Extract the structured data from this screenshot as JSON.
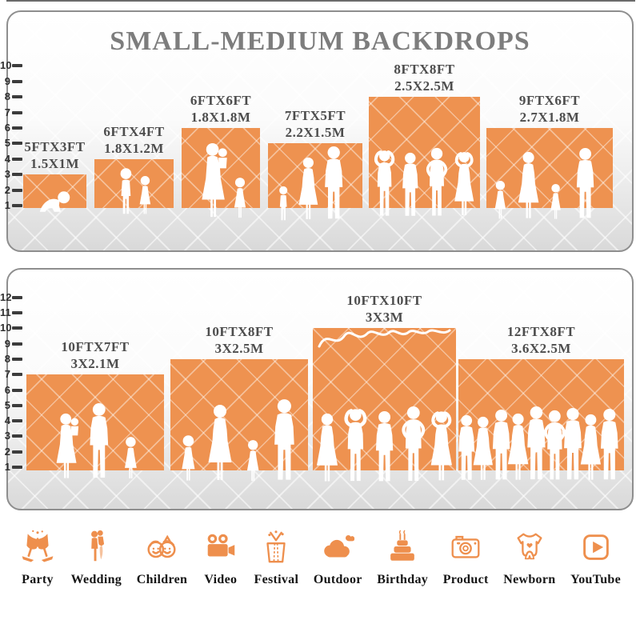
{
  "title": "SMALL-MEDIUM BACKDROPS",
  "colors": {
    "backdrop_orange": "#EE9250",
    "icon_orange": "#EE8F4D",
    "label_gray": "#4D4D4D",
    "title_gray": "#7D7D7D",
    "panel_border_gray": "#8E8E8E",
    "floor_gray": "#D9D9D9"
  },
  "panels": [
    {
      "name": "small-medium-backdrops",
      "ruler_ticks": [
        "1",
        "2",
        "3",
        "4",
        "5",
        "6",
        "7",
        "8",
        "9",
        "10"
      ],
      "backdrops": [
        {
          "size_ft": "5FTX3FT",
          "size_m": "1.5X1M",
          "people": "crawling-baby"
        },
        {
          "size_ft": "6FTX4FT",
          "size_m": "1.8X1.2M",
          "people": "two-children"
        },
        {
          "size_ft": "6FTX6FT",
          "size_m": "1.8X1.8M",
          "people": "mother-holding-baby-with-girl"
        },
        {
          "size_ft": "7FTX5FT",
          "size_m": "2.2X1.5M",
          "people": "toddler-mother-father"
        },
        {
          "size_ft": "8FTX8FT",
          "size_m": "2.5X2.5M",
          "people": "four-adults-posing"
        },
        {
          "size_ft": "9FTX6FT",
          "size_m": "2.7X1.8M",
          "people": "family-of-four"
        }
      ]
    },
    {
      "name": "large-backdrops",
      "ruler_ticks": [
        "1",
        "2",
        "3",
        "4",
        "5",
        "6",
        "7",
        "8",
        "9",
        "10",
        "11",
        "12"
      ],
      "backdrops": [
        {
          "size_ft": "10FTX7FT",
          "size_m": "3X2.1M",
          "people": "family-with-baby"
        },
        {
          "size_ft": "10FTX8FT",
          "size_m": "3X2.5M",
          "people": "family-of-four-holding-hands"
        },
        {
          "size_ft": "10FTX10FT",
          "size_m": "3X3M",
          "people": "five-adults-posing"
        },
        {
          "size_ft": "12FTX8FT",
          "size_m": "3.6X2.5M",
          "people": "crowd-of-nine"
        }
      ]
    }
  ],
  "categories": [
    {
      "label": "Party",
      "icon": "party-glasses-icon"
    },
    {
      "label": "Wedding",
      "icon": "wedding-couple-icon"
    },
    {
      "label": "Children",
      "icon": "children-faces-icon"
    },
    {
      "label": "Video",
      "icon": "video-camera-icon"
    },
    {
      "label": "Festival",
      "icon": "gift-box-icon"
    },
    {
      "label": "Outdoor",
      "icon": "cloud-icon"
    },
    {
      "label": "Birthday",
      "icon": "birthday-cake-icon"
    },
    {
      "label": "Product",
      "icon": "photo-camera-icon"
    },
    {
      "label": "Newborn",
      "icon": "baby-onesie-icon"
    },
    {
      "label": "YouTube",
      "icon": "youtube-play-icon"
    }
  ]
}
